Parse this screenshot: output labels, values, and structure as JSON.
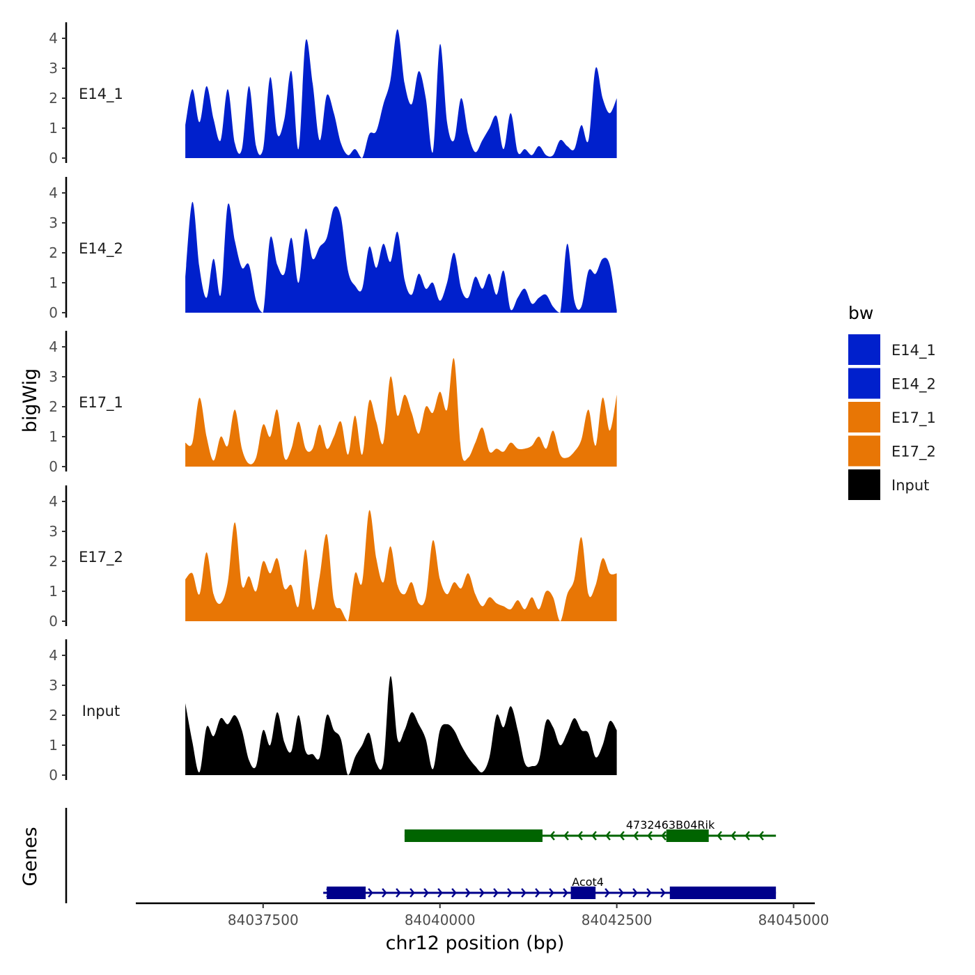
{
  "chart_data": {
    "type": "area",
    "chromosome": "chr12",
    "xlabel": "chr12 position (bp)",
    "ylabel": "bigWig",
    "genes_label": "Genes",
    "xlim": [
      84035700,
      84045300
    ],
    "x_ticks": [
      84037500,
      84040000,
      84042500,
      84045000
    ],
    "x_tick_labels": [
      "84037500",
      "84040000",
      "84042500",
      "84045000"
    ],
    "ylim": [
      0,
      4.5
    ],
    "y_ticks": [
      0,
      1,
      2,
      3,
      4
    ],
    "y_tick_labels": [
      "0",
      "1",
      "2",
      "3",
      "4"
    ],
    "legend": {
      "title": "bw",
      "entries": [
        {
          "label": "E14_1",
          "color": "#0020CC"
        },
        {
          "label": "E14_2",
          "color": "#0020CC"
        },
        {
          "label": "E17_1",
          "color": "#E87605"
        },
        {
          "label": "E17_2",
          "color": "#E87605"
        },
        {
          "label": "Input",
          "color": "#000000"
        }
      ]
    },
    "x_start": 84036400,
    "x_step": 100,
    "series": [
      {
        "name": "E14_1",
        "color": "#0020CC",
        "values": [
          1.1,
          2.3,
          1.2,
          2.4,
          1.3,
          0.6,
          2.3,
          0.5,
          0.3,
          2.4,
          0.4,
          0.3,
          2.7,
          0.8,
          1.3,
          2.9,
          0.3,
          3.9,
          2.5,
          0.6,
          2.1,
          1.5,
          0.5,
          0.1,
          0.3,
          0,
          0.8,
          0.9,
          1.8,
          2.6,
          4.3,
          2.5,
          1.8,
          2.9,
          2.0,
          0.2,
          3.8,
          1.2,
          0.6,
          2.0,
          0.8,
          0.2,
          0.6,
          1.0,
          1.4,
          0.3,
          1.5,
          0.2,
          0.3,
          0.1,
          0.4,
          0.1,
          0.1,
          0.6,
          0.4,
          0.3,
          1.1,
          0.6,
          3.0,
          2.0,
          1.5,
          2.0
        ]
      },
      {
        "name": "E14_2",
        "color": "#0020CC",
        "values": [
          1.2,
          3.7,
          1.5,
          0.5,
          1.8,
          0.6,
          3.6,
          2.4,
          1.5,
          1.6,
          0.4,
          0,
          2.5,
          1.6,
          1.3,
          2.5,
          1.0,
          2.8,
          1.8,
          2.2,
          2.5,
          3.5,
          3.2,
          1.4,
          0.9,
          0.8,
          2.2,
          1.5,
          2.3,
          1.7,
          2.7,
          1.1,
          0.6,
          1.3,
          0.8,
          1.0,
          0.4,
          1.0,
          2.0,
          0.8,
          0.5,
          1.2,
          0.8,
          1.3,
          0.6,
          1.4,
          0.1,
          0.5,
          0.8,
          0.3,
          0.5,
          0.6,
          0.2,
          0,
          2.3,
          0.4,
          0.2,
          1.4,
          1.3,
          1.8,
          1.6,
          0.1
        ]
      },
      {
        "name": "E17_1",
        "color": "#E87605",
        "values": [
          0.8,
          0.8,
          2.3,
          1.0,
          0.2,
          1.0,
          0.7,
          1.9,
          0.6,
          0.1,
          0.3,
          1.4,
          1.0,
          1.9,
          0.3,
          0.6,
          1.5,
          0.6,
          0.6,
          1.4,
          0.6,
          1.0,
          1.5,
          0.4,
          1.7,
          0.4,
          2.2,
          1.5,
          0.8,
          3.0,
          1.7,
          2.4,
          1.8,
          1.1,
          2.0,
          1.8,
          2.5,
          1.9,
          3.6,
          0.5,
          0.3,
          0.8,
          1.3,
          0.5,
          0.6,
          0.5,
          0.8,
          0.6,
          0.6,
          0.7,
          1.0,
          0.6,
          1.2,
          0.4,
          0.3,
          0.5,
          0.9,
          1.9,
          0.7,
          2.3,
          1.2,
          2.4
        ]
      },
      {
        "name": "E17_2",
        "color": "#E87605",
        "values": [
          1.4,
          1.6,
          0.9,
          2.3,
          0.9,
          0.6,
          1.3,
          3.3,
          1.2,
          1.5,
          1.0,
          2.0,
          1.6,
          2.1,
          1.1,
          1.2,
          0.5,
          2.4,
          0.4,
          1.5,
          2.9,
          0.7,
          0.4,
          0,
          1.6,
          1.3,
          3.7,
          2.1,
          1.3,
          2.5,
          1.2,
          0.9,
          1.3,
          0.6,
          0.8,
          2.7,
          1.4,
          0.9,
          1.3,
          1.1,
          1.6,
          0.9,
          0.5,
          0.8,
          0.6,
          0.5,
          0.4,
          0.7,
          0.4,
          0.8,
          0.4,
          1.0,
          0.8,
          0,
          0.9,
          1.4,
          2.8,
          0.9,
          1.2,
          2.1,
          1.6,
          1.6
        ]
      },
      {
        "name": "Input",
        "color": "#000000",
        "values": [
          2.4,
          1.1,
          0.1,
          1.6,
          1.3,
          1.9,
          1.7,
          2.0,
          1.5,
          0.5,
          0.3,
          1.5,
          1.0,
          2.1,
          1.1,
          0.8,
          2.0,
          0.8,
          0.7,
          0.6,
          2.0,
          1.5,
          1.2,
          0,
          0.6,
          1.0,
          1.4,
          0.4,
          0.4,
          3.3,
          1.2,
          1.5,
          2.1,
          1.7,
          1.2,
          0.2,
          1.5,
          1.7,
          1.5,
          1.0,
          0.6,
          0.3,
          0.1,
          0.6,
          2.0,
          1.6,
          2.3,
          1.5,
          0.4,
          0.3,
          0.5,
          1.8,
          1.6,
          1.0,
          1.4,
          1.9,
          1.5,
          1.4,
          0.6,
          1.0,
          1.8,
          1.5
        ]
      }
    ],
    "genes": [
      {
        "name": "4732463B04Rik",
        "strand": "-",
        "color": "#006400",
        "start": 84039500,
        "end": 84044750,
        "exons": [
          [
            84039500,
            84041450
          ],
          [
            84043200,
            84043800
          ]
        ]
      },
      {
        "name": "Acot4",
        "strand": "+",
        "color": "#00008B",
        "start": 84038350,
        "end": 84044750,
        "exons": [
          [
            84038400,
            84038950
          ],
          [
            84041850,
            84042200
          ],
          [
            84043250,
            84044750
          ]
        ]
      }
    ]
  }
}
